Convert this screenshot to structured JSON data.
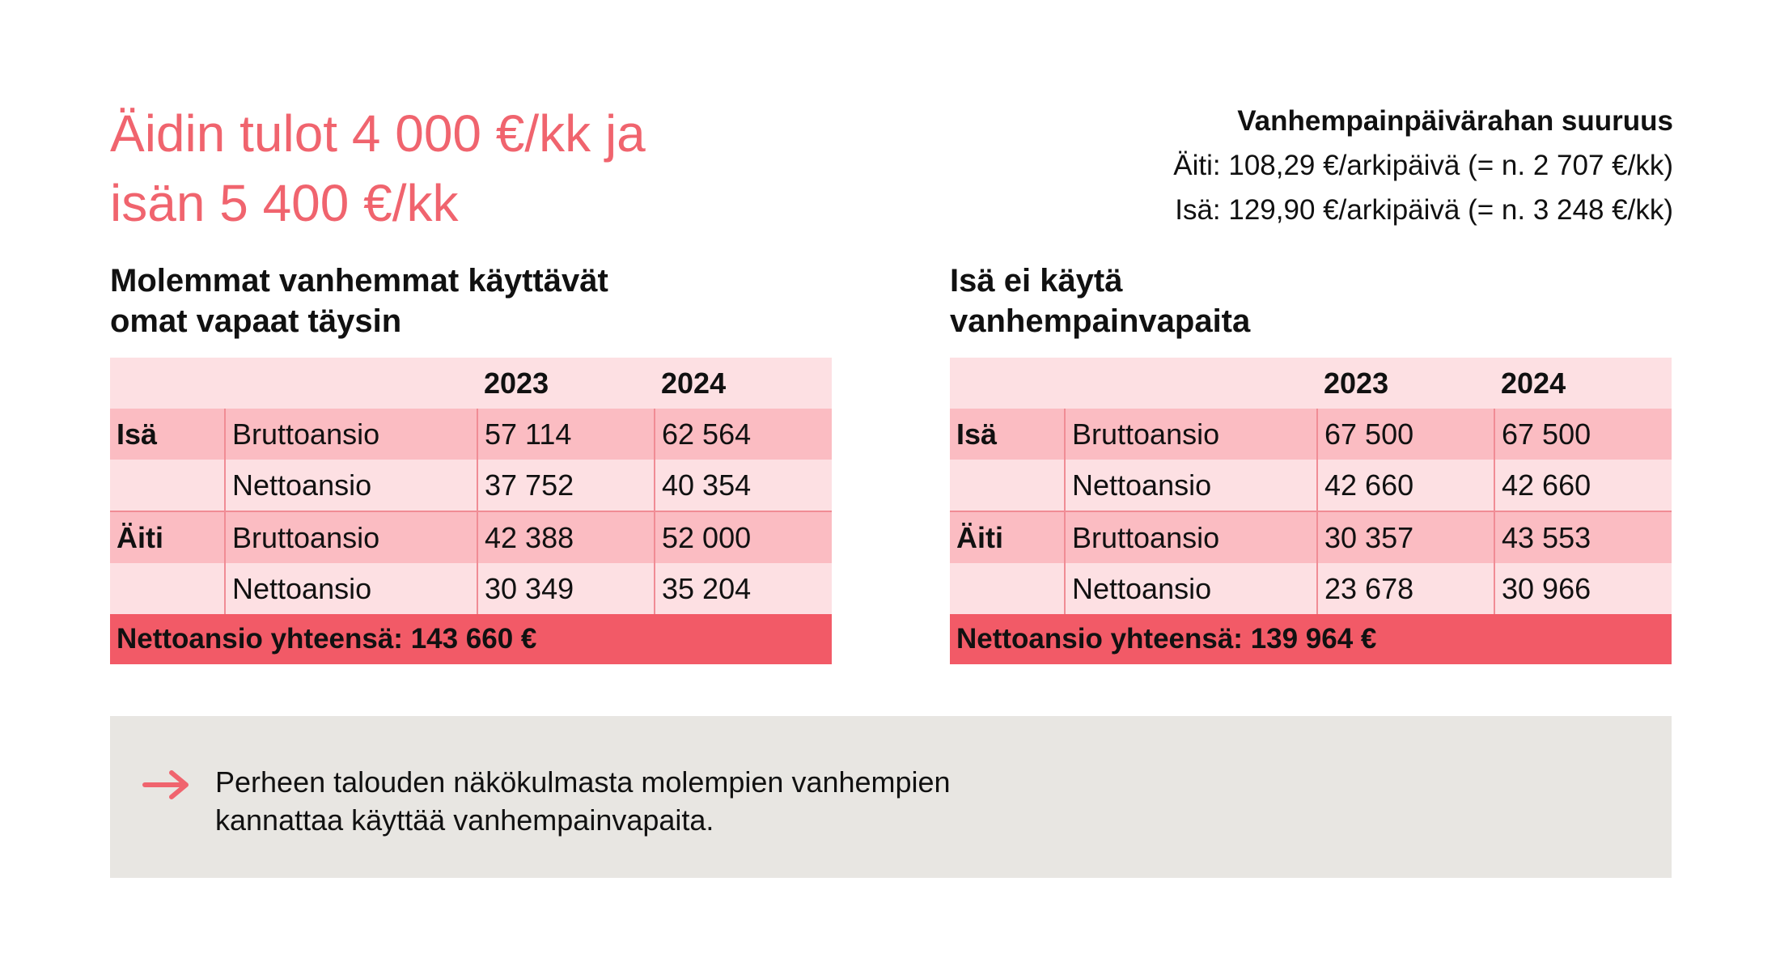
{
  "title": {
    "line1": "Äidin tulot 4 000 €/kk ja",
    "line2": "isän 5 400 €/kk"
  },
  "allowance": {
    "heading": "Vanhempainpäivärahan suuruus",
    "mother": "Äiti: 108,29 €/arkipäivä (= n. 2 707 €/kk)",
    "father": "Isä: 129,90 €/arkipäivä (= n. 3 248 €/kk)"
  },
  "sections": [
    {
      "title_line1": "Molemmat vanhemmat käyttävät",
      "title_line2": "omat vapaat täysin",
      "years": [
        "2023",
        "2024"
      ],
      "rows": [
        {
          "person": "Isä",
          "label": "Bruttoansio",
          "values": [
            "57 114",
            "62 564"
          ]
        },
        {
          "person": "",
          "label": "Nettoansio",
          "values": [
            "37 752",
            "40 354"
          ]
        },
        {
          "person": "Äiti",
          "label": "Bruttoansio",
          "values": [
            "42 388",
            "52 000"
          ]
        },
        {
          "person": "",
          "label": "Nettoansio",
          "values": [
            "30 349",
            "35 204"
          ]
        }
      ],
      "total": "Nettoansio yhteensä:  143 660 €"
    },
    {
      "title_line1": "Isä ei käytä",
      "title_line2": "vanhempainvapaita",
      "years": [
        "2023",
        "2024"
      ],
      "rows": [
        {
          "person": "Isä",
          "label": "Bruttoansio",
          "values": [
            "67 500",
            "67 500"
          ]
        },
        {
          "person": "",
          "label": "Nettoansio",
          "values": [
            "42 660",
            "42 660"
          ]
        },
        {
          "person": "Äiti",
          "label": "Bruttoansio",
          "values": [
            "30 357",
            "43 553"
          ]
        },
        {
          "person": "",
          "label": "Nettoansio",
          "values": [
            "23 678",
            "30 966"
          ]
        }
      ],
      "total": "Nettoansio yhteensä:  139 964 €"
    }
  ],
  "note": {
    "icon": "arrow-right-icon",
    "line1": "Perheen talouden näkökulmasta molempien vanhempien",
    "line2": "kannattaa käyttää vanhempainvapaita."
  },
  "colors": {
    "accent": "#f0646e",
    "total_row": "#f25a67",
    "row_light": "#fde0e3",
    "row_dark": "#fbbcc2",
    "note_bg": "#e8e6e2"
  }
}
